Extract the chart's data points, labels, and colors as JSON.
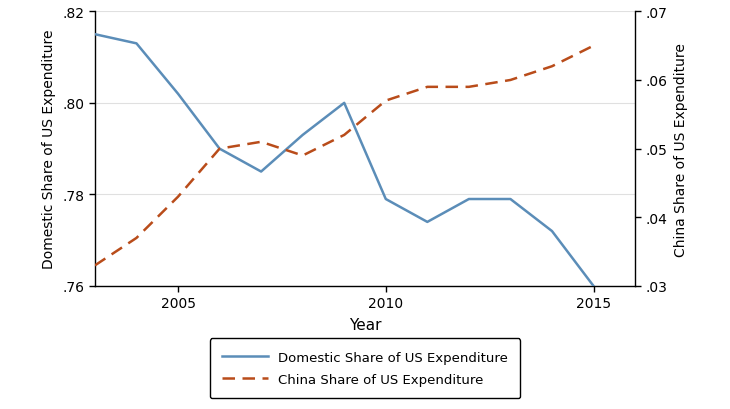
{
  "years_domestic": [
    2003,
    2004,
    2005,
    2006,
    2007,
    2008,
    2009,
    2010,
    2011,
    2012,
    2013,
    2014,
    2015
  ],
  "domestic_values": [
    0.815,
    0.813,
    0.802,
    0.79,
    0.785,
    0.793,
    0.8,
    0.779,
    0.774,
    0.779,
    0.779,
    0.772,
    0.76
  ],
  "years_china": [
    2003,
    2004,
    2005,
    2006,
    2007,
    2008,
    2009,
    2010,
    2011,
    2012,
    2013,
    2014,
    2015
  ],
  "china_values": [
    0.033,
    0.037,
    0.043,
    0.05,
    0.051,
    0.049,
    0.052,
    0.057,
    0.059,
    0.059,
    0.06,
    0.062,
    0.065
  ],
  "domestic_color": "#5b8db8",
  "china_color": "#b94c1a",
  "left_ylim": [
    0.76,
    0.82
  ],
  "right_ylim": [
    0.03,
    0.07
  ],
  "left_yticks": [
    0.76,
    0.78,
    0.8,
    0.82
  ],
  "right_yticks": [
    0.03,
    0.04,
    0.05,
    0.06,
    0.07
  ],
  "left_ylabel": "Domestic Share of US Expenditure",
  "right_ylabel": "China Share of US Expenditure",
  "xlabel": "Year",
  "xlim": [
    2003,
    2016
  ],
  "xticks": [
    2005,
    2010,
    2015
  ],
  "legend_labels": [
    "Domestic Share of US Expenditure",
    "China Share of US Expenditure"
  ],
  "background_color": "#ffffff",
  "grid_color": "#e0e0e0"
}
